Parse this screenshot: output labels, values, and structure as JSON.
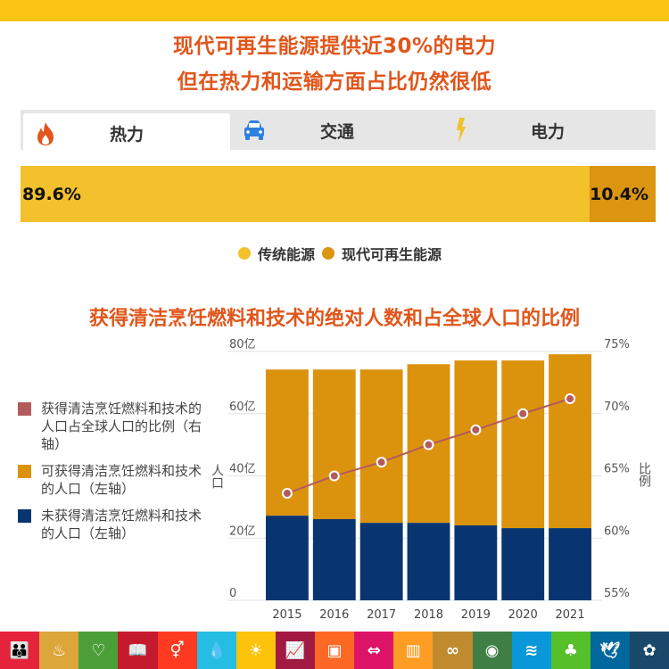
{
  "header": {
    "line1": "现代可再生能源提供近30%的电力",
    "line2": "但在热力和运输方面占比仍然很低"
  },
  "tabs": [
    {
      "label": "热力",
      "icon": "flame-icon",
      "active": true
    },
    {
      "label": "交通",
      "icon": "car-icon",
      "active": false
    },
    {
      "label": "电力",
      "icon": "lightning-icon",
      "active": false
    }
  ],
  "share_bar": {
    "traditional": {
      "label": "89.6%",
      "value": 89.6,
      "color": "#F2C12B"
    },
    "modern": {
      "label": "10.4%",
      "value": 10.4,
      "color": "#DB9510"
    }
  },
  "share_legend": [
    {
      "label": "传统能源",
      "color": "#F2C12B"
    },
    {
      "label": "现代可再生能源",
      "color": "#DB9510"
    }
  ],
  "chart_title": "获得清洁烹饪燃料和技术的绝对人数和占全球人口的比例",
  "chart_legend": [
    {
      "label": "获得清洁烹饪燃料和技术的人口占全球人口的比例（右轴）",
      "color": "#B55A5C"
    },
    {
      "label": "可获得清洁烹饪燃料和技术的人口（左轴）",
      "color": "#DB930E"
    },
    {
      "label": "未获得清洁烹饪燃料和技术的人口（左轴）",
      "color": "#08356F"
    }
  ],
  "axis": {
    "left_title": "人口",
    "right_title": "比例"
  },
  "chart_data": [
    {
      "type": "bar",
      "title": "热力",
      "categories": [
        "传统能源",
        "现代可再生能源"
      ],
      "values": [
        89.6,
        10.4
      ],
      "orientation": "horizontal-stacked",
      "unit": "%"
    },
    {
      "type": "bar",
      "title": "获得清洁烹饪燃料和技术的绝对人数和占全球人口的比例",
      "categories": [
        "2015",
        "2016",
        "2017",
        "2018",
        "2019",
        "2020",
        "2021"
      ],
      "series": [
        {
          "name": "未获得清洁烹饪燃料和技术的人口（左轴）",
          "type": "bar",
          "stack": "pop",
          "axis": "left",
          "color": "#08356F",
          "values": [
            27.2,
            26.1,
            24.9,
            24.9,
            24.1,
            23.2,
            23.2
          ]
        },
        {
          "name": "可获得清洁烹饪燃料和技术的人口（左轴）",
          "type": "bar",
          "stack": "pop",
          "axis": "left",
          "color": "#DB930E",
          "values": [
            47.0,
            48.1,
            49.3,
            51.0,
            53.0,
            53.9,
            55.9
          ]
        },
        {
          "name": "获得清洁烹饪燃料和技术的人口占全球人口的比例（右轴）",
          "type": "line",
          "axis": "right",
          "color": "#B55A5C",
          "values": [
            63.6,
            65.0,
            66.1,
            67.5,
            68.7,
            70.0,
            71.2
          ]
        }
      ],
      "xlabel": "",
      "ylabel": "人口",
      "ylabel_right": "比例",
      "ylim": [
        0,
        80
      ],
      "ylim_right": [
        55,
        75
      ],
      "yticks": [
        "0",
        "20亿",
        "40亿",
        "60亿",
        "80亿"
      ],
      "yticks_right": [
        "55%",
        "60%",
        "65%",
        "70%",
        "75%"
      ],
      "grid": true,
      "legend_position": "left"
    }
  ],
  "sdg_icons": [
    {
      "name": "no-poverty-icon",
      "color": "#E5243B",
      "glyph": "👪"
    },
    {
      "name": "zero-hunger-icon",
      "color": "#DDA63A",
      "glyph": "♨"
    },
    {
      "name": "health-icon",
      "color": "#4C9F38",
      "glyph": "♡"
    },
    {
      "name": "education-icon",
      "color": "#C5192D",
      "glyph": "📖"
    },
    {
      "name": "gender-equality-icon",
      "color": "#FF3A21",
      "glyph": "⚥"
    },
    {
      "name": "clean-water-icon",
      "color": "#26BDE2",
      "glyph": "💧"
    },
    {
      "name": "clean-energy-icon",
      "color": "#FCC30B",
      "glyph": "☀"
    },
    {
      "name": "decent-work-icon",
      "color": "#A21942",
      "glyph": "📈"
    },
    {
      "name": "industry-icon",
      "color": "#FD6925",
      "glyph": "▣"
    },
    {
      "name": "reduced-inequalities-icon",
      "color": "#DD1367",
      "glyph": "⇔"
    },
    {
      "name": "sustainable-cities-icon",
      "color": "#FD9D24",
      "glyph": "▥"
    },
    {
      "name": "responsible-consumption-icon",
      "color": "#BF8B2E",
      "glyph": "∞"
    },
    {
      "name": "climate-action-icon",
      "color": "#3F7E44",
      "glyph": "◉"
    },
    {
      "name": "life-below-water-icon",
      "color": "#0A97D9",
      "glyph": "≋"
    },
    {
      "name": "life-on-land-icon",
      "color": "#56C02B",
      "glyph": "♣"
    },
    {
      "name": "peace-justice-icon",
      "color": "#00689D",
      "glyph": "🕊"
    },
    {
      "name": "partnerships-icon",
      "color": "#19486A",
      "glyph": "✿"
    }
  ]
}
